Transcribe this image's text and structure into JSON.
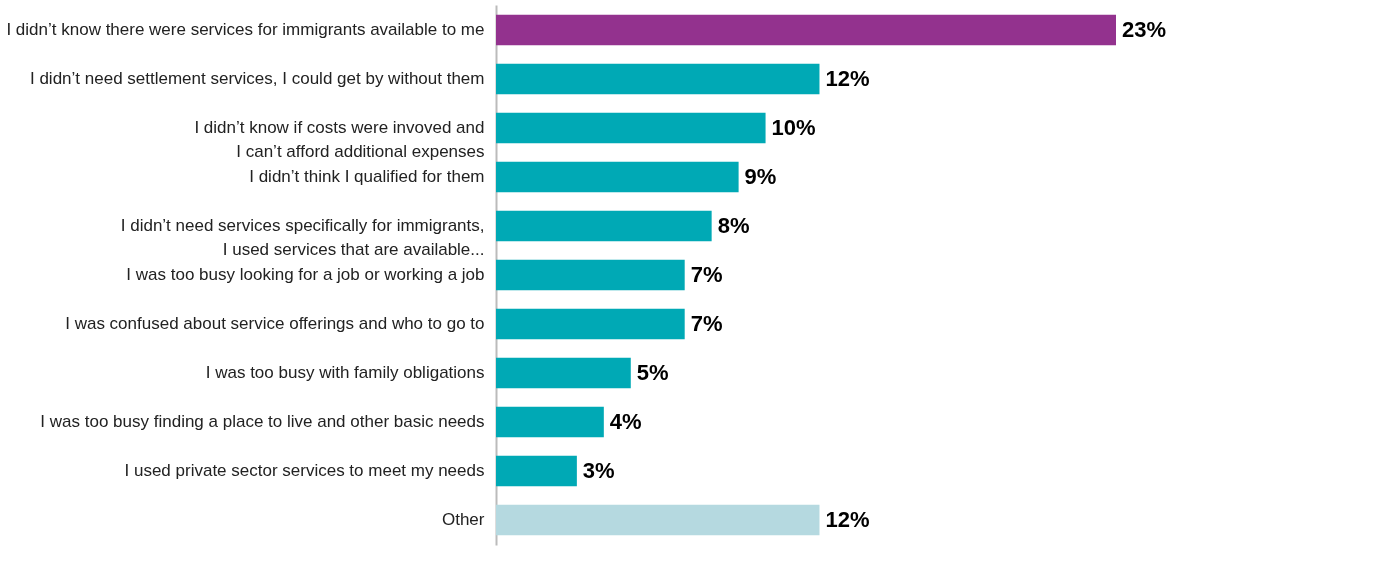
{
  "chart_data": {
    "type": "bar",
    "orientation": "horizontal",
    "categories": [
      "I didn’t know there were services for immigrants available to me",
      "I didn’t need settlement services, I could get by without them",
      "I didn’t know if costs were invoved and \nI can’t afford additional expenses",
      "I didn’t think I qualified for them",
      "I didn’t need services specifically for immigrants,\nI used services that are available...",
      "I was too busy looking for a job or working a job",
      "I was confused about service offerings and who to go to",
      "I was too busy with family obligations",
      "I was too busy finding a place to live and other basic needs",
      "I used private sector services to meet my needs",
      "Other"
    ],
    "values": [
      23,
      12,
      10,
      9,
      8,
      7,
      7,
      5,
      4,
      3,
      12
    ],
    "value_labels": [
      "23%",
      "12%",
      "10%",
      "9%",
      "8%",
      "7%",
      "7%",
      "5%",
      "4%",
      "3%",
      "12%"
    ],
    "colors": [
      "#93328e",
      "#00a9b5",
      "#00a9b5",
      "#00a9b5",
      "#00a9b5",
      "#00a9b5",
      "#00a9b5",
      "#00a9b5",
      "#00a9b5",
      "#00a9b5",
      "#b5d9e0"
    ],
    "legend": false
  }
}
